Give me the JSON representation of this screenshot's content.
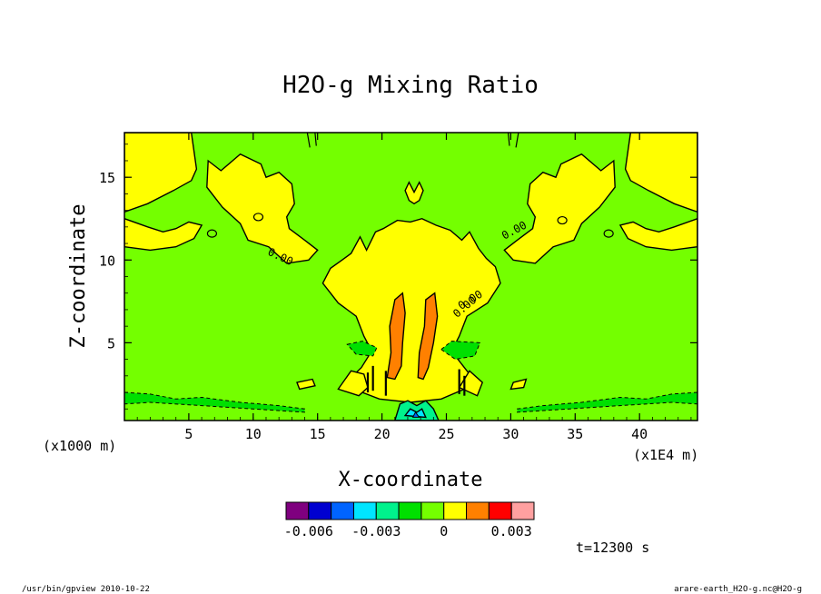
{
  "chart_data": {
    "type": "heatmap",
    "title": "H2O-g Mixing Ratio",
    "xlabel": "X-coordinate",
    "ylabel": "Z-coordinate",
    "x_unit_left": "(x1000 m)",
    "x_unit_right": "(x1E4 m)",
    "xlim": [
      0,
      44.5
    ],
    "ylim": [
      0.3,
      17.7
    ],
    "x_ticks": [
      "5",
      "10",
      "15",
      "20",
      "25",
      "30",
      "35",
      "40"
    ],
    "y_ticks": [
      "5",
      "10",
      "15"
    ],
    "x_tick_values": [
      5,
      10,
      15,
      20,
      25,
      30,
      35,
      40
    ],
    "y_tick_values": [
      5,
      10,
      15
    ],
    "contour_labels": [
      "0.00",
      "0.00",
      "0.00",
      "0.00"
    ],
    "colorbar": {
      "colors": [
        "#7f007f",
        "#0000d0",
        "#0064ff",
        "#00e5ff",
        "#00f28c",
        "#00e000",
        "#74ff00",
        "#ffff00",
        "#ff8000",
        "#ff0000",
        "#ffa0a0"
      ],
      "levels": [
        -0.007,
        -0.006,
        -0.005,
        -0.004,
        -0.003,
        -0.002,
        -0.001,
        0,
        0.001,
        0.002,
        0.003,
        0.004
      ],
      "tick_labels": [
        "-0.006",
        "-0.003",
        "0",
        "0.003"
      ],
      "tick_values": [
        -0.006,
        -0.003,
        0,
        0.003
      ]
    },
    "time_label": "t=12300 s",
    "legend_position": "bottom"
  },
  "footer": {
    "left": "/usr/bin/gpview   2010-10-22",
    "right": "arare-earth_H2O-g.nc@H2O-g"
  }
}
